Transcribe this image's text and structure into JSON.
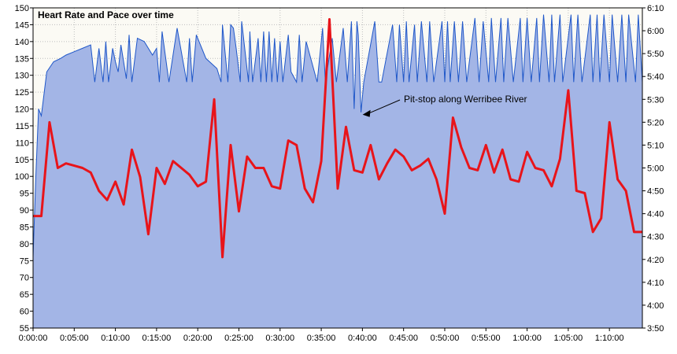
{
  "chart_data": {
    "type": "area",
    "title": "Heart Rate and Pace over time",
    "grid": true,
    "colors": {
      "plot_background": "#fbfaf4",
      "heart_rate_fill": "#a3b5e6",
      "heart_rate_line": "#1f57c9",
      "pace_line": "#e8141a",
      "grid": "#bdbdbd"
    },
    "x_axis": {
      "range": [
        "0:00:00",
        "1:14:00"
      ],
      "ticks": [
        "0:00:00",
        "0:05:00",
        "0:10:00",
        "0:15:00",
        "0:20:00",
        "0:25:00",
        "0:30:00",
        "0:35:00",
        "0:40:00",
        "0:45:00",
        "0:50:00",
        "0:55:00",
        "1:00:00",
        "1:05:00",
        "1:10:00"
      ]
    },
    "y_left": {
      "range": [
        55,
        150
      ],
      "ticks": [
        "55",
        "60",
        "65",
        "70",
        "75",
        "80",
        "85",
        "90",
        "95",
        "100",
        "105",
        "110",
        "115",
        "120",
        "125",
        "130",
        "135",
        "140",
        "145",
        "150"
      ]
    },
    "y_right": {
      "range": [
        "3:50",
        "6:10"
      ],
      "ticks": [
        "3:50",
        "4:00",
        "4:10",
        "4:20",
        "4:30",
        "4:40",
        "4:50",
        "5:00",
        "5:10",
        "5:20",
        "5:30",
        "5:40",
        "5:50",
        "6:00",
        "6:10"
      ]
    },
    "series": [
      {
        "axis": "left",
        "style": "area",
        "x": [
          "0:00:00",
          "0:00:20",
          "0:00:40",
          "0:01:00",
          "0:01:40",
          "0:02:30",
          "0:03:20",
          "0:04:00",
          "0:05:00",
          "0:06:00",
          "0:07:00",
          "0:07:30",
          "0:08:00",
          "0:08:30",
          "0:08:50",
          "0:09:10",
          "0:09:40",
          "0:10:00",
          "0:10:20",
          "0:10:40",
          "0:11:20",
          "0:11:40",
          "0:12:00",
          "0:12:40",
          "0:13:30",
          "0:14:30",
          "0:15:00",
          "0:15:20",
          "0:15:40",
          "0:16:30",
          "0:17:30",
          "0:18:40",
          "0:19:00",
          "0:19:20",
          "0:19:50",
          "0:21:00",
          "0:22:20",
          "0:22:50",
          "0:23:00",
          "0:23:40",
          "0:24:00",
          "0:24:20",
          "0:24:40",
          "0:25:10",
          "0:25:20",
          "0:26:10",
          "0:26:20",
          "0:26:40",
          "0:27:20",
          "0:27:40",
          "0:28:00",
          "0:28:20",
          "0:28:40",
          "0:29:00",
          "0:29:20",
          "0:29:40",
          "0:30:00",
          "0:30:20",
          "0:31:00",
          "0:31:20",
          "0:32:00",
          "0:32:20",
          "0:32:40",
          "0:33:10",
          "0:34:30",
          "0:35:10",
          "0:35:30",
          "0:36:20",
          "0:36:50",
          "0:37:40",
          "0:38:10",
          "0:38:40",
          "0:39:00",
          "0:39:20",
          "0:39:30",
          "0:39:50",
          "0:40:10",
          "0:41:30",
          "0:42:00",
          "0:42:20",
          "0:43:40",
          "0:44:10",
          "0:44:30",
          "0:45:00",
          "0:45:20",
          "0:45:40",
          "0:46:20",
          "0:46:40",
          "0:47:10",
          "0:47:50",
          "0:48:10",
          "0:48:40",
          "0:49:40",
          "0:50:00",
          "0:50:20",
          "0:50:40",
          "0:51:10",
          "0:51:40",
          "0:52:10",
          "0:52:40",
          "0:53:40",
          "0:54:10",
          "0:54:40",
          "0:55:20",
          "0:55:40",
          "0:56:10",
          "0:56:50",
          "0:57:10",
          "0:57:40",
          "0:58:20",
          "0:59:10",
          "0:59:30",
          "1:00:00",
          "1:00:30",
          "1:01:10",
          "1:01:30",
          "1:02:00",
          "1:02:40",
          "1:03:00",
          "1:03:20",
          "1:04:00",
          "1:04:20",
          "1:05:20",
          "1:05:40",
          "1:06:10",
          "1:06:40",
          "1:07:40",
          "1:08:00",
          "1:08:30",
          "1:08:50",
          "1:09:20",
          "1:10:00",
          "1:10:20",
          "1:11:00",
          "1:11:30",
          "1:12:00",
          "1:12:20",
          "1:13:10",
          "1:13:30",
          "1:14:00"
        ],
        "values": [
          76,
          100,
          120,
          118,
          131,
          134,
          135,
          136,
          137,
          138,
          139,
          128,
          138,
          128,
          140,
          128,
          138,
          134,
          131,
          139,
          129,
          142,
          128,
          141,
          140,
          136,
          138,
          128,
          143,
          128,
          144,
          128,
          141,
          128,
          142,
          135,
          132,
          128,
          145,
          128,
          145,
          144,
          138,
          128,
          146,
          128,
          143,
          128,
          141,
          128,
          143,
          128,
          143,
          128,
          141,
          128,
          140,
          128,
          142,
          131,
          128,
          142,
          128,
          140,
          128,
          144,
          128,
          141,
          128,
          144,
          128,
          146,
          120,
          146,
          142,
          119,
          128,
          146,
          128,
          128,
          145,
          128,
          145,
          128,
          146,
          128,
          145,
          128,
          146,
          128,
          146,
          128,
          146,
          128,
          146,
          128,
          146,
          128,
          146,
          128,
          147,
          128,
          146,
          128,
          147,
          128,
          147,
          128,
          147,
          128,
          147,
          128,
          147,
          128,
          147,
          128,
          148,
          128,
          148,
          128,
          148,
          128,
          148,
          128,
          148,
          128,
          148,
          128,
          148,
          128,
          148,
          128,
          148,
          128,
          148,
          128,
          148,
          128,
          148,
          128
        ]
      },
      {
        "axis": "right",
        "style": "line",
        "x": [
          "0:00:00",
          "0:01:00",
          "0:02:00",
          "0:03:00",
          "0:04:00",
          "0:05:00",
          "0:06:00",
          "0:07:00",
          "0:08:00",
          "0:09:00",
          "0:10:00",
          "0:11:00",
          "0:12:00",
          "0:13:00",
          "0:14:00",
          "0:15:00",
          "0:16:00",
          "0:17:00",
          "0:18:00",
          "0:19:00",
          "0:20:00",
          "0:21:00",
          "0:22:00",
          "0:23:00",
          "0:24:00",
          "0:25:00",
          "0:26:00",
          "0:27:00",
          "0:28:00",
          "0:29:00",
          "0:30:00",
          "0:31:00",
          "0:32:00",
          "0:33:00",
          "0:34:00",
          "0:35:00",
          "0:36:00",
          "0:37:00",
          "0:38:00",
          "0:39:00",
          "0:40:00",
          "0:41:00",
          "0:42:00",
          "0:43:00",
          "0:44:00",
          "0:45:00",
          "0:46:00",
          "0:47:00",
          "0:48:00",
          "0:49:00",
          "0:50:00",
          "0:51:00",
          "0:52:00",
          "0:53:00",
          "0:54:00",
          "0:55:00",
          "0:56:00",
          "0:57:00",
          "0:58:00",
          "0:59:00",
          "1:00:00",
          "1:01:00",
          "1:02:00",
          "1:03:00",
          "1:04:00",
          "1:05:00",
          "1:06:00",
          "1:07:00",
          "1:08:00",
          "1:09:00",
          "1:10:00",
          "1:11:00",
          "1:12:00",
          "1:13:00",
          "1:14:00"
        ],
        "values": [
          "4:39",
          "4:39",
          "5:20",
          "5:00",
          "5:02",
          "5:01",
          "5:00",
          "4:58",
          "4:50",
          "4:46",
          "4:54",
          "4:44",
          "5:08",
          "4:56",
          "4:31",
          "5:00",
          "4:53",
          "5:03",
          "5:00",
          "4:57",
          "4:52",
          "4:54",
          "5:30",
          "4:21",
          "5:10",
          "4:41",
          "5:05",
          "5:00",
          "5:00",
          "4:52",
          "4:51",
          "5:12",
          "5:10",
          "4:51",
          "4:45",
          "5:03",
          "6:05",
          "4:51",
          "5:18",
          "4:59",
          "4:58",
          "5:10",
          "4:55",
          "5:02",
          "5:08",
          "5:05",
          "4:59",
          "5:01",
          "5:04",
          "4:55",
          "4:40",
          "5:22",
          "5:09",
          "5:00",
          "4:59",
          "5:10",
          "4:58",
          "5:08",
          "4:55",
          "4:54",
          "5:07",
          "5:00",
          "4:59",
          "4:52",
          "5:04",
          "5:34",
          "4:50",
          "4:49",
          "4:32",
          "4:38",
          "5:20",
          "4:55",
          "4:50",
          "4:32",
          "4:32"
        ]
      }
    ],
    "annotations": [
      {
        "text": "Pit-stop along Werribee River",
        "x": "0:39:50",
        "y": 119
      }
    ]
  }
}
